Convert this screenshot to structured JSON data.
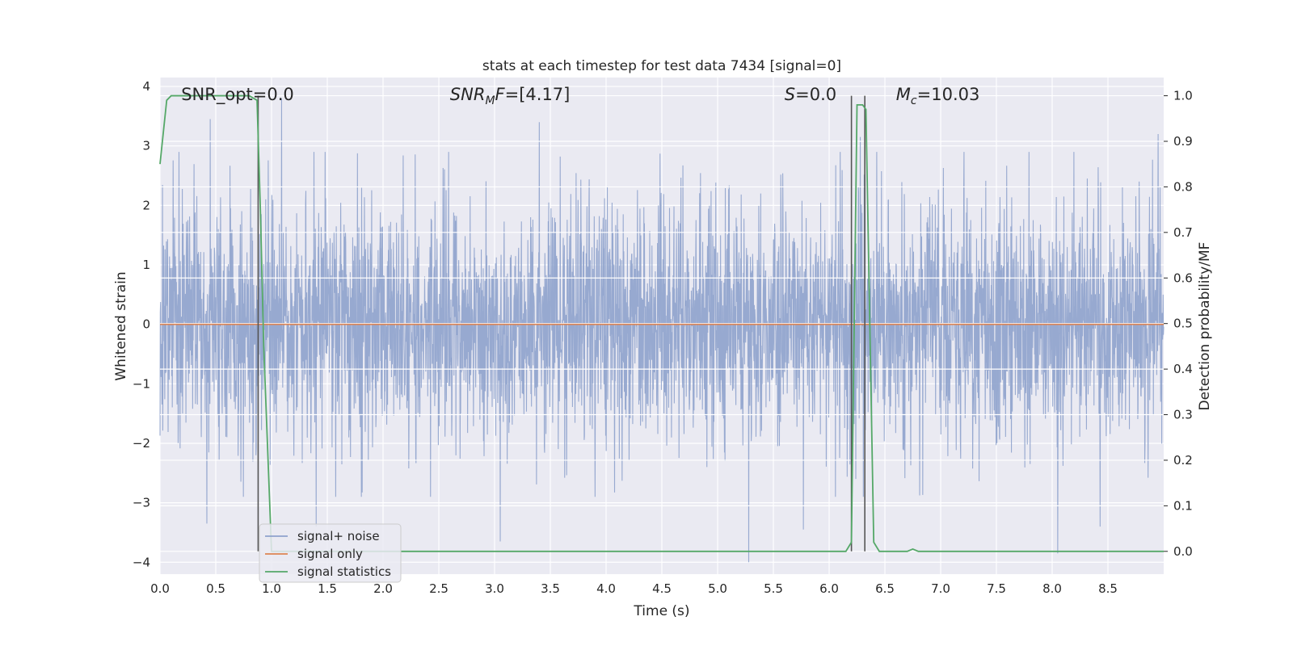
{
  "chart_data": {
    "type": "line",
    "title": "stats at each timestep for test data 7434 [signal=0]",
    "xlabel": "Time (s)",
    "ylabel_left": "Whitened strain",
    "ylabel_right": "Detection probability/MF",
    "xlim": [
      0.0,
      9.0
    ],
    "ylim_left": [
      -4.2,
      4.15
    ],
    "ylim_right": [
      -0.05,
      1.04
    ],
    "x_ticks": [
      "0.0",
      "0.5",
      "1.0",
      "1.5",
      "2.0",
      "2.5",
      "3.0",
      "3.5",
      "4.0",
      "4.5",
      "5.0",
      "5.5",
      "6.0",
      "6.5",
      "7.0",
      "7.5",
      "8.0",
      "8.5"
    ],
    "y_ticks_left": [
      "−4",
      "−3",
      "−2",
      "−1",
      "0",
      "1",
      "2",
      "3",
      "4"
    ],
    "y_ticks_right": [
      "0.0",
      "0.1",
      "0.2",
      "0.3",
      "0.4",
      "0.5",
      "0.6",
      "0.7",
      "0.8",
      "0.9",
      "1.0"
    ],
    "grid": true,
    "legend_position": "lower-left",
    "annotations": [
      {
        "parts": [
          {
            "text": "SNR_opt=0.0"
          }
        ],
        "x": 0.19
      },
      {
        "parts": [
          {
            "text": "SNR",
            "italic": true
          },
          {
            "text": "M",
            "italic": true,
            "sub": true
          },
          {
            "text": "F",
            "italic": true
          },
          {
            "text": "=[4.17]"
          }
        ],
        "x": 2.6
      },
      {
        "parts": [
          {
            "text": "S",
            "italic": true
          },
          {
            "text": "=0.0"
          }
        ],
        "x": 5.6
      },
      {
        "parts": [
          {
            "text": "M",
            "italic": true
          },
          {
            "text": "c",
            "italic": true,
            "sub": true
          },
          {
            "text": "=10.03"
          }
        ],
        "x": 6.6
      }
    ],
    "series": [
      {
        "name": "signal+ noise",
        "axis": "left",
        "color": "#8ea2cc",
        "style": "whitened gaussian noise, std ~1.0, spikes up to ~3.8 and down to ~-4.0",
        "peaks": [
          [
            0.42,
            -3.35
          ],
          [
            0.45,
            3.45
          ],
          [
            0.86,
            -2.2
          ],
          [
            1.09,
            3.8
          ],
          [
            1.4,
            -3.4
          ],
          [
            3.05,
            -3.65
          ],
          [
            3.4,
            3.4
          ],
          [
            5.28,
            -4.0
          ],
          [
            5.77,
            -3.45
          ],
          [
            6.24,
            -2.6
          ],
          [
            6.28,
            3.15
          ],
          [
            8.05,
            -3.85
          ],
          [
            8.43,
            -3.4
          ],
          [
            8.95,
            3.2
          ]
        ]
      },
      {
        "name": "signal only",
        "axis": "left",
        "color": "#dd8452",
        "x": [
          0.0,
          9.0
        ],
        "y": [
          0.0,
          0.0
        ]
      },
      {
        "name": "signal statistics",
        "axis": "right",
        "color": "#55a868",
        "x": [
          0.0,
          0.06,
          0.1,
          0.2,
          0.5,
          0.8,
          0.87,
          0.9,
          0.93,
          1.0,
          1.1,
          2.0,
          3.0,
          4.0,
          5.0,
          6.0,
          6.15,
          6.2,
          6.25,
          6.3,
          6.33,
          6.4,
          6.45,
          6.6,
          6.7,
          6.75,
          6.8,
          7.0,
          8.0,
          9.0
        ],
        "y": [
          0.85,
          0.99,
          1.0,
          1.0,
          1.0,
          1.0,
          0.99,
          0.75,
          0.45,
          0.0,
          0.0,
          0.0,
          0.0,
          0.0,
          0.0,
          0.0,
          0.0,
          0.02,
          0.98,
          0.98,
          0.97,
          0.02,
          0.0,
          0.0,
          0.0,
          0.005,
          0.0,
          0.0,
          0.0,
          0.0
        ]
      }
    ],
    "vlines": {
      "color": "#555555",
      "x": [
        0.88,
        6.2,
        6.32
      ],
      "ymax_right": 1.0
    }
  }
}
